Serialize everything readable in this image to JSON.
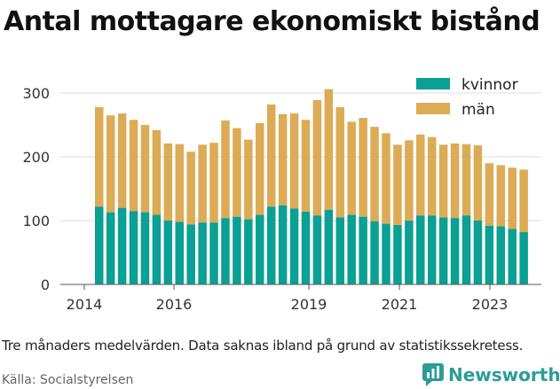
{
  "title": "Antal mottagare ekonomiskt bistånd",
  "caption": "Tre månaders medelvärden. Data saknas ibland på grund av statistikssekretess.",
  "source": "Källa: Socialstyrelsen",
  "brand": "Newsworthy",
  "colors": {
    "kvinnor": "#0aa093",
    "man": "#dcab55",
    "grid": "#dddddd",
    "brand": "#2a9d97"
  },
  "chart_data": {
    "type": "bar",
    "stacked": true,
    "x_ticks": [
      "2014",
      "2016",
      "2019",
      "2021",
      "2023"
    ],
    "y_ticks": [
      "0",
      "100",
      "200",
      "300"
    ],
    "ylim": [
      0,
      320
    ],
    "grid": true,
    "legend_position": "top-right",
    "series": [
      {
        "name": "kvinnor",
        "values": [
          122,
          113,
          120,
          115,
          113,
          109,
          100,
          98,
          94,
          97,
          97,
          104,
          106,
          102,
          109,
          122,
          124,
          119,
          114,
          108,
          117,
          105,
          109,
          106,
          99,
          95,
          93,
          100,
          108,
          108,
          105,
          104,
          108,
          100,
          92,
          91,
          87,
          82
        ]
      },
      {
        "name": "män",
        "values": [
          156,
          152,
          148,
          143,
          137,
          133,
          121,
          122,
          114,
          122,
          125,
          153,
          139,
          125,
          144,
          160,
          143,
          149,
          144,
          181,
          189,
          173,
          146,
          155,
          148,
          142,
          126,
          126,
          127,
          123,
          114,
          117,
          112,
          118,
          98,
          96,
          96,
          98
        ]
      }
    ]
  }
}
